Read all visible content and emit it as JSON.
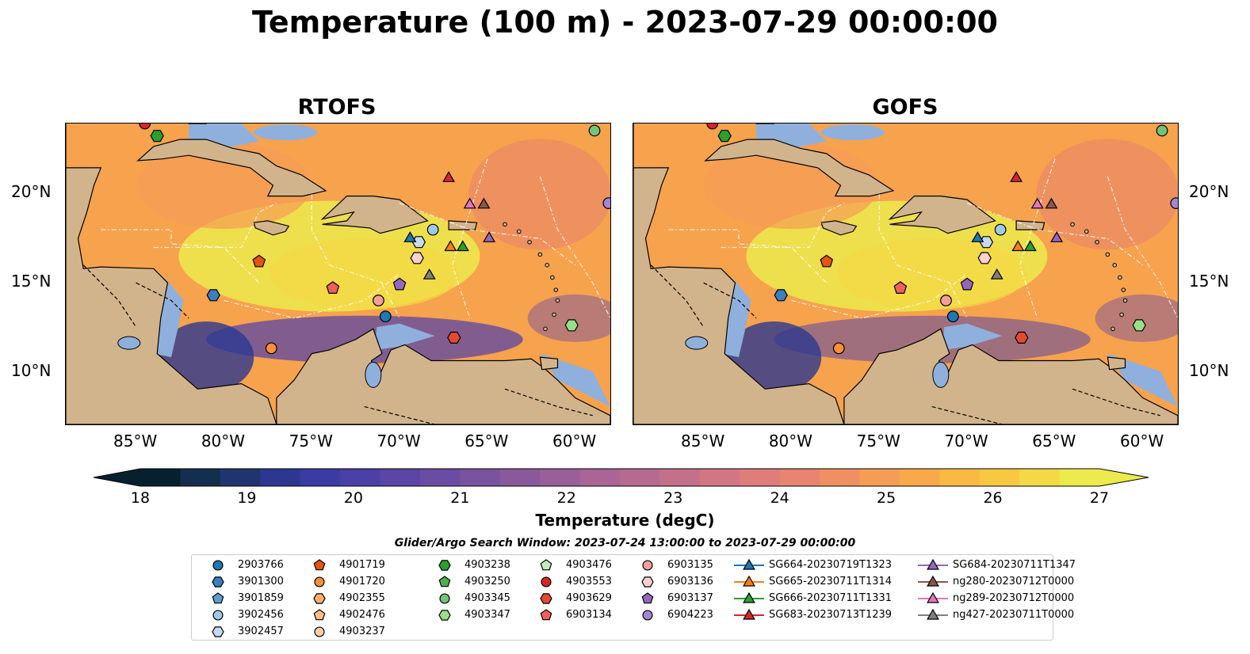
{
  "title": "Temperature (100 m) - 2023-07-29 00:00:00",
  "panels": [
    {
      "title": "RTOFS"
    },
    {
      "title": "GOFS"
    }
  ],
  "lat_labels": [
    "20°N",
    "15°N",
    "10°N"
  ],
  "lon_labels": [
    "85°W",
    "80°W",
    "75°W",
    "70°W",
    "65°W",
    "60°W"
  ],
  "colorbar": {
    "label": "Temperature (degC)",
    "ticks": [
      "18",
      "19",
      "20",
      "21",
      "22",
      "23",
      "24",
      "25",
      "26",
      "27"
    ],
    "range": [
      18,
      27
    ],
    "colors": [
      "#06202e",
      "#142f4e",
      "#20356f",
      "#2c3890",
      "#3a3ba3",
      "#4b40a6",
      "#5a46a5",
      "#6a4da2",
      "#7a539f",
      "#89599c",
      "#995f99",
      "#a86595",
      "#b76a90",
      "#c5708a",
      "#d27683",
      "#de7d7a",
      "#e8846f",
      "#f08f62",
      "#f59c55",
      "#f8aa4a",
      "#f9b944",
      "#f9c842",
      "#f4d944",
      "#ecea4c"
    ]
  },
  "search_window": "Glider/Argo Search Window: 2023-07-24 13:00:00 to 2023-07-29 00:00:00",
  "legend": [
    {
      "label": "2903766",
      "marker": "circle",
      "color": "#1f77b4"
    },
    {
      "label": "3901300",
      "marker": "hexagon",
      "color": "#3a7fc0"
    },
    {
      "label": "3901859",
      "marker": "pentagon",
      "color": "#5aa0d8"
    },
    {
      "label": "3902456",
      "marker": "circle",
      "color": "#9ecae9"
    },
    {
      "label": "3902457",
      "marker": "hexagon",
      "color": "#c6dbef"
    },
    {
      "label": "4901719",
      "marker": "pentagon",
      "color": "#e6550d"
    },
    {
      "label": "4901720",
      "marker": "circle",
      "color": "#fd8d3c"
    },
    {
      "label": "4902355",
      "marker": "hexagon",
      "color": "#fdae6b"
    },
    {
      "label": "4902476",
      "marker": "pentagon",
      "color": "#fdbe85"
    },
    {
      "label": "4903237",
      "marker": "circle",
      "color": "#fdd0a2"
    },
    {
      "label": "4903238",
      "marker": "hexagon",
      "color": "#2ca02c"
    },
    {
      "label": "4903250",
      "marker": "pentagon",
      "color": "#4cb04c"
    },
    {
      "label": "4903345",
      "marker": "circle",
      "color": "#74c476"
    },
    {
      "label": "4903347",
      "marker": "hexagon",
      "color": "#98df8a"
    },
    {
      "label": "4903476",
      "marker": "pentagon",
      "color": "#c7e9c0"
    },
    {
      "label": "4903553",
      "marker": "circle",
      "color": "#d62728"
    },
    {
      "label": "4903629",
      "marker": "hexagon",
      "color": "#e34a33"
    },
    {
      "label": "6903134",
      "marker": "pentagon",
      "color": "#f0605a"
    },
    {
      "label": "6903135",
      "marker": "circle",
      "color": "#f4a09a"
    },
    {
      "label": "6903136",
      "marker": "hexagon",
      "color": "#fcd0d0"
    },
    {
      "label": "6903137",
      "marker": "pentagon",
      "color": "#9467bd"
    },
    {
      "label": "6904223",
      "marker": "circle",
      "color": "#a585d0"
    },
    {
      "label": "SG664-20230719T1323",
      "marker": "triangle-line",
      "color": "#1f77b4"
    },
    {
      "label": "SG665-20230711T1314",
      "marker": "triangle-line",
      "color": "#ff7f0e"
    },
    {
      "label": "SG666-20230711T1331",
      "marker": "triangle-line",
      "color": "#2ca02c"
    },
    {
      "label": "SG683-20230713T1239",
      "marker": "triangle-line",
      "color": "#d62728"
    },
    {
      "label": "SG684-20230711T1347",
      "marker": "triangle-line",
      "color": "#9467bd"
    },
    {
      "label": "ng280-20230712T0000",
      "marker": "triangle-line",
      "color": "#8c564b"
    },
    {
      "label": "ng289-20230712T0000",
      "marker": "triangle-line",
      "color": "#e377c2"
    },
    {
      "label": "ng427-20230711T0000",
      "marker": "triangle-line",
      "color": "#7f7f7f"
    }
  ],
  "map_extent": {
    "lon": [
      -89,
      -58
    ],
    "lat": [
      7,
      24
    ]
  },
  "observations": [
    {
      "lon": -84.5,
      "lat": 24.0,
      "marker": "circle",
      "color": "#d62728"
    },
    {
      "lon": -83.8,
      "lat": 23.3,
      "marker": "hexagon",
      "color": "#2ca02c"
    },
    {
      "lon": -58.9,
      "lat": 23.6,
      "marker": "circle",
      "color": "#74c476"
    },
    {
      "lon": -58.1,
      "lat": 19.5,
      "marker": "circle",
      "color": "#a585d0"
    },
    {
      "lon": -67.2,
      "lat": 20.9,
      "marker": "triangle",
      "color": "#d62728"
    },
    {
      "lon": -66.0,
      "lat": 19.4,
      "marker": "triangle",
      "color": "#e377c2"
    },
    {
      "lon": -65.2,
      "lat": 19.4,
      "marker": "triangle",
      "color": "#8c564b"
    },
    {
      "lon": -68.1,
      "lat": 18.0,
      "marker": "circle",
      "color": "#9ecae9"
    },
    {
      "lon": -68.9,
      "lat": 17.3,
      "marker": "hexagon",
      "color": "#c6dbef"
    },
    {
      "lon": -69.4,
      "lat": 17.5,
      "marker": "triangle",
      "color": "#1f77b4"
    },
    {
      "lon": -64.9,
      "lat": 17.5,
      "marker": "triangle",
      "color": "#9467bd"
    },
    {
      "lon": -67.1,
      "lat": 17.0,
      "marker": "triangle",
      "color": "#ff7f0e"
    },
    {
      "lon": -66.4,
      "lat": 17.0,
      "marker": "triangle",
      "color": "#2ca02c"
    },
    {
      "lon": -69.0,
      "lat": 16.4,
      "marker": "hexagon",
      "color": "#fcd0d0"
    },
    {
      "lon": -78.0,
      "lat": 16.2,
      "marker": "pentagon",
      "color": "#e6550d"
    },
    {
      "lon": -68.3,
      "lat": 15.4,
      "marker": "triangle",
      "color": "#7f7f7f"
    },
    {
      "lon": -70.0,
      "lat": 14.9,
      "marker": "pentagon",
      "color": "#9467bd"
    },
    {
      "lon": -73.8,
      "lat": 14.7,
      "marker": "pentagon",
      "color": "#f0605a"
    },
    {
      "lon": -80.6,
      "lat": 14.3,
      "marker": "hexagon",
      "color": "#3a7fc0"
    },
    {
      "lon": -71.2,
      "lat": 14.0,
      "marker": "circle",
      "color": "#f4a09a"
    },
    {
      "lon": -70.8,
      "lat": 13.1,
      "marker": "circle",
      "color": "#1f77b4"
    },
    {
      "lon": -60.2,
      "lat": 12.6,
      "marker": "hexagon",
      "color": "#98df8a"
    },
    {
      "lon": -66.9,
      "lat": 11.9,
      "marker": "hexagon",
      "color": "#e34a33"
    },
    {
      "lon": -77.3,
      "lat": 11.3,
      "marker": "circle",
      "color": "#fd8d3c"
    }
  ]
}
